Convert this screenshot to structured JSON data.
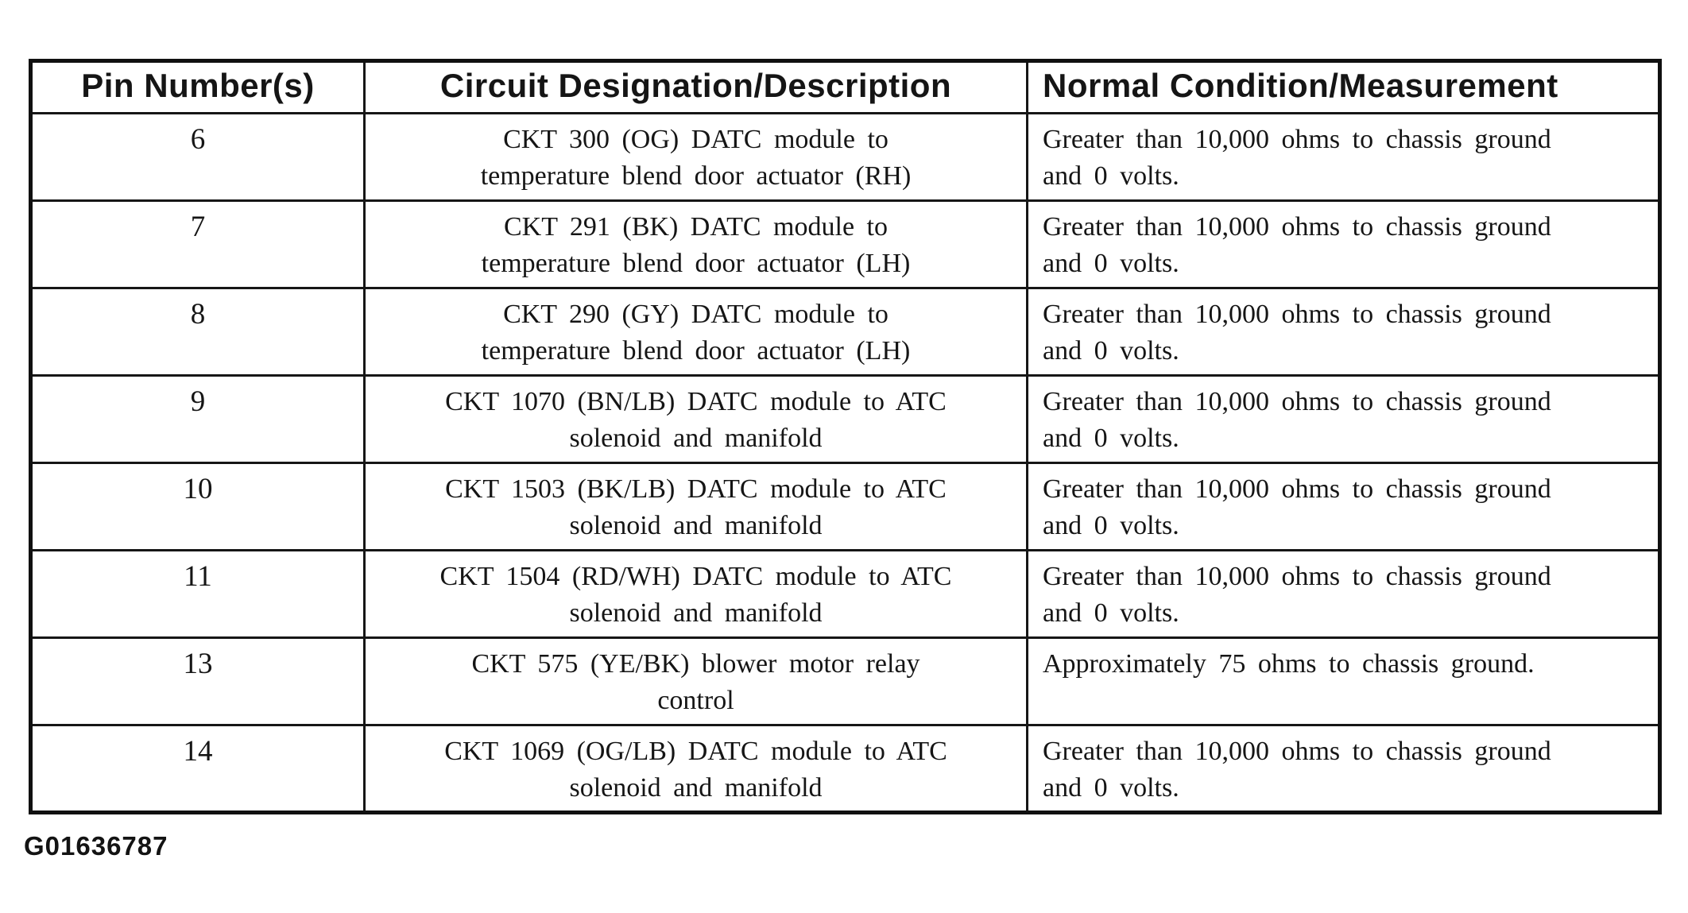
{
  "document": {
    "figure_id": "G01636787"
  },
  "colors": {
    "ink": "#151515",
    "paper": "#ffffff"
  },
  "table": {
    "columns": [
      {
        "label": "Pin Number(s)"
      },
      {
        "label": "Circuit Designation/Description"
      },
      {
        "label": "Normal Condition/Measurement"
      }
    ],
    "rows": [
      {
        "pin": "6",
        "circuit_lines": [
          "CKT 300 (OG) DATC module to",
          "temperature blend door actuator (RH)"
        ],
        "condition_lines": [
          "Greater than 10,000 ohms to chassis ground",
          "and 0 volts."
        ]
      },
      {
        "pin": "7",
        "circuit_lines": [
          "CKT 291 (BK) DATC module to",
          "temperature blend door actuator (LH)"
        ],
        "condition_lines": [
          "Greater than 10,000 ohms to chassis ground",
          "and 0 volts."
        ]
      },
      {
        "pin": "8",
        "circuit_lines": [
          "CKT 290 (GY) DATC module to",
          "temperature blend door actuator (LH)"
        ],
        "condition_lines": [
          "Greater than 10,000 ohms to chassis ground",
          "and 0 volts."
        ]
      },
      {
        "pin": "9",
        "circuit_lines": [
          "CKT 1070 (BN/LB) DATC module to ATC",
          "solenoid and manifold"
        ],
        "condition_lines": [
          "Greater than 10,000 ohms to chassis ground",
          "and 0 volts."
        ]
      },
      {
        "pin": "10",
        "circuit_lines": [
          "CKT 1503 (BK/LB) DATC module to ATC",
          "solenoid and manifold"
        ],
        "condition_lines": [
          "Greater than 10,000 ohms to chassis ground",
          "and 0 volts."
        ]
      },
      {
        "pin": "11",
        "circuit_lines": [
          "CKT 1504 (RD/WH) DATC module to ATC",
          "solenoid and manifold"
        ],
        "condition_lines": [
          "Greater than 10,000 ohms to chassis ground",
          "and 0 volts."
        ]
      },
      {
        "pin": "13",
        "circuit_lines": [
          "CKT 575 (YE/BK) blower motor relay",
          "control"
        ],
        "condition_lines": [
          "Approximately 75 ohms to chassis ground."
        ]
      },
      {
        "pin": "14",
        "circuit_lines": [
          "CKT 1069 (OG/LB) DATC module to ATC",
          "solenoid and manifold"
        ],
        "condition_lines": [
          "Greater than 10,000 ohms to chassis ground",
          "and 0 volts."
        ]
      }
    ]
  }
}
